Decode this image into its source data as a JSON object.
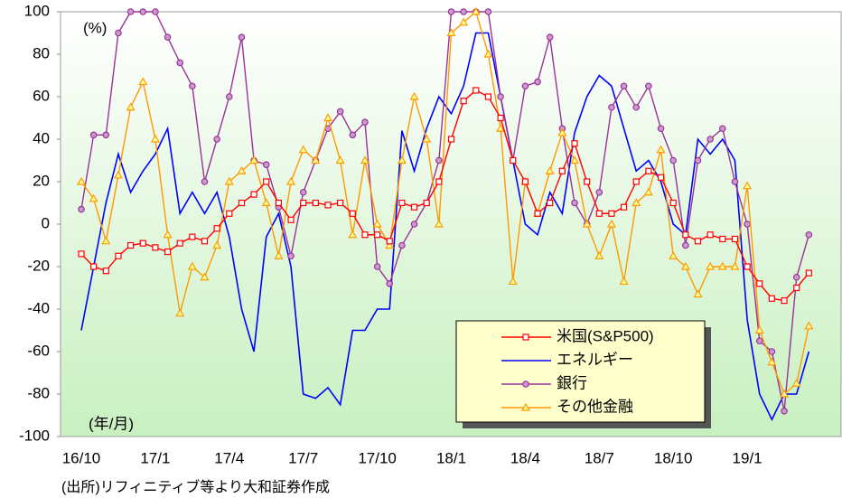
{
  "chart_data": {
    "type": "line",
    "y_unit": "(%)",
    "x_unit": "(年/月)",
    "source": "(出所)リフィニティブ等より大和証券作成",
    "categories": [
      "16/10",
      null,
      null,
      null,
      null,
      null,
      "17/1",
      null,
      null,
      null,
      null,
      null,
      "17/4",
      null,
      null,
      null,
      null,
      null,
      "17/7",
      null,
      null,
      null,
      null,
      null,
      "17/10",
      null,
      null,
      null,
      null,
      null,
      "18/1",
      null,
      null,
      null,
      null,
      null,
      "18/4",
      null,
      null,
      null,
      null,
      null,
      "18/7",
      null,
      null,
      null,
      null,
      null,
      "18/10",
      null,
      null,
      null,
      null,
      null,
      "19/1",
      null,
      null,
      null,
      null,
      null
    ],
    "ylim": [
      -100,
      100
    ],
    "yticks": [
      -100,
      -80,
      -60,
      -40,
      -20,
      0,
      20,
      40,
      60,
      80,
      100
    ],
    "grid": false,
    "series": [
      {
        "name": "米国(S&P500)",
        "color": "#ff0000",
        "marker": "square",
        "values": [
          -14,
          -20,
          -22,
          -15,
          -10,
          -9,
          -11,
          -13,
          -9,
          -6,
          -8,
          -2,
          5,
          10,
          14,
          20,
          10,
          2,
          10,
          10,
          9,
          10,
          5,
          -5,
          -5,
          -8,
          10,
          8,
          10,
          20,
          40,
          58,
          63,
          60,
          50,
          30,
          20,
          5,
          10,
          25,
          38,
          20,
          5,
          5,
          8,
          20,
          25,
          22,
          10,
          -5,
          -8,
          -5,
          -7,
          -7,
          -20,
          -28,
          -35,
          -36,
          -30,
          -23
        ]
      },
      {
        "name": "エネルギー",
        "color": "#0000ff",
        "marker": "none",
        "values": [
          -50,
          -20,
          10,
          33,
          15,
          25,
          33,
          45,
          5,
          15,
          5,
          15,
          -6,
          -40,
          -60,
          -6,
          5,
          -20,
          -80,
          -82,
          -77,
          -85,
          -50,
          -50,
          -40,
          -40,
          44,
          25,
          45,
          60,
          52,
          65,
          90,
          90,
          60,
          30,
          0,
          -5,
          15,
          5,
          43,
          60,
          70,
          65,
          45,
          25,
          30,
          20,
          0,
          -5,
          40,
          33,
          40,
          30,
          -45,
          -80,
          -92,
          -80,
          -80,
          -60
        ]
      },
      {
        "name": "銀行",
        "color": "#993399",
        "marker": "circle",
        "values": [
          7,
          42,
          42,
          90,
          100,
          100,
          100,
          88,
          76,
          65,
          20,
          40,
          60,
          88,
          30,
          28,
          8,
          -15,
          15,
          30,
          45,
          53,
          42,
          48,
          -20,
          -28,
          -10,
          0,
          10,
          30,
          100,
          100,
          100,
          100,
          60,
          30,
          65,
          67,
          88,
          45,
          10,
          0,
          15,
          55,
          65,
          55,
          65,
          45,
          30,
          -10,
          30,
          40,
          45,
          20,
          0,
          -55,
          -60,
          -88,
          -25,
          -5
        ]
      },
      {
        "name": "その他金融",
        "color": "#ff9900",
        "marker": "triangle",
        "values": [
          20,
          12,
          -8,
          23,
          55,
          67,
          40,
          -5,
          -42,
          -20,
          -25,
          -10,
          20,
          25,
          30,
          10,
          -15,
          20,
          35,
          30,
          50,
          30,
          -5,
          30,
          0,
          -10,
          30,
          60,
          40,
          0,
          90,
          95,
          100,
          80,
          45,
          -27,
          20,
          5,
          25,
          43,
          30,
          0,
          -15,
          0,
          -27,
          10,
          15,
          35,
          -15,
          -20,
          -33,
          -20,
          -20,
          -20,
          18,
          -50,
          -65,
          -80,
          -75,
          -48
        ]
      }
    ]
  }
}
